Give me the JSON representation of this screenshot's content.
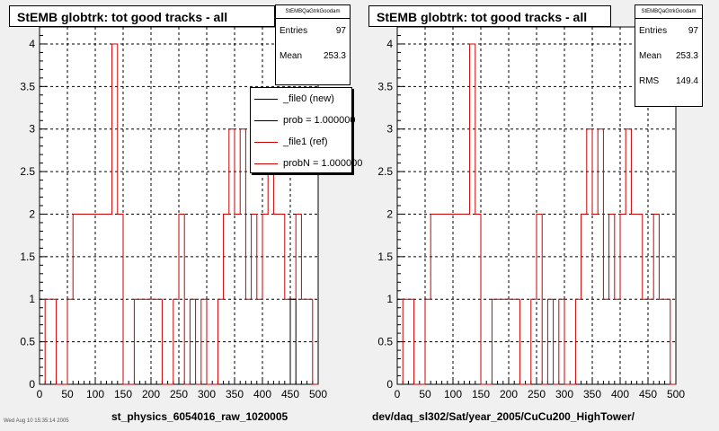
{
  "colors": {
    "new": "#000000",
    "ref": "#cc0000",
    "grid": "#000000"
  },
  "left": {
    "title": "StEMB globtrk: tot good tracks - all",
    "stats": {
      "header": "StEMBQaGtrkGoodam",
      "entries_label": "Entries",
      "entries": "97",
      "mean_label": "Mean",
      "mean": "253.3"
    },
    "legend": [
      "_file0 (new)",
      "prob = 1.000000",
      "_file1 (ref)",
      "probN = 1.000000"
    ],
    "xlabel": "st_physics_6054016_raw_1020005",
    "footer": "Wed Aug 10 15:35:14 2005"
  },
  "right": {
    "title": "StEMB globtrk: tot good tracks - all",
    "stats": {
      "header": "StEMBQaGtrkGoodam",
      "entries_label": "Entries",
      "entries": "97",
      "mean_label": "Mean",
      "mean": "253.3",
      "rms_label": "RMS",
      "rms": "149.4"
    },
    "xlabel": "dev/daq_sl302/Sat/year_2005/CuCu200_HighTower/"
  },
  "chart_data": [
    {
      "type": "histogram",
      "title": "StEMB globtrk: tot good tracks - all",
      "xlabel": "st_physics_6054016_raw_1020005",
      "xlim": [
        0,
        500
      ],
      "ylim": [
        0,
        4.2
      ],
      "xticks": [
        0,
        50,
        100,
        150,
        200,
        250,
        300,
        350,
        400,
        450,
        500
      ],
      "yticks": [
        "0",
        "0.5",
        "1",
        "1.5",
        "2",
        "2.5",
        "3",
        "3.5",
        "4"
      ],
      "grid": true,
      "bin_width": 10,
      "series": [
        {
          "name": "_file0 (new)",
          "color": "#000000",
          "bins": [
            [
              440,
              0
            ],
            [
              450,
              1
            ],
            [
              460,
              0
            ]
          ]
        },
        {
          "name": "_file1 (ref)",
          "color": "#cc0000",
          "bins": [
            [
              10,
              1
            ],
            [
              20,
              1
            ],
            [
              30,
              0
            ],
            [
              40,
              0
            ],
            [
              50,
              1
            ],
            [
              60,
              2
            ],
            [
              70,
              2
            ],
            [
              80,
              2
            ],
            [
              90,
              2
            ],
            [
              100,
              2
            ],
            [
              110,
              2
            ],
            [
              120,
              2
            ],
            [
              130,
              4
            ],
            [
              140,
              2
            ],
            [
              150,
              0
            ],
            [
              160,
              0
            ],
            [
              170,
              1
            ],
            [
              180,
              1
            ],
            [
              190,
              1
            ],
            [
              200,
              1
            ],
            [
              210,
              1
            ],
            [
              220,
              0
            ],
            [
              230,
              0
            ],
            [
              240,
              1
            ],
            [
              250,
              2
            ],
            [
              260,
              0
            ],
            [
              270,
              1
            ],
            [
              280,
              0
            ],
            [
              290,
              1
            ],
            [
              300,
              0
            ],
            [
              310,
              0
            ],
            [
              320,
              1
            ],
            [
              330,
              2
            ],
            [
              340,
              3
            ],
            [
              350,
              2
            ],
            [
              360,
              3
            ],
            [
              370,
              1
            ],
            [
              380,
              2
            ],
            [
              390,
              1
            ],
            [
              400,
              2
            ],
            [
              410,
              3
            ],
            [
              420,
              2
            ],
            [
              430,
              2
            ],
            [
              440,
              1
            ],
            [
              450,
              1
            ],
            [
              460,
              2
            ],
            [
              470,
              1
            ],
            [
              480,
              1
            ],
            [
              490,
              0
            ]
          ]
        }
      ]
    },
    {
      "type": "histogram",
      "title": "StEMB globtrk: tot good tracks - all",
      "xlabel": "dev/daq_sl302/Sat/year_2005/CuCu200_HighTower/",
      "xlim": [
        0,
        500
      ],
      "ylim": [
        0,
        4.2
      ],
      "xticks": [
        0,
        50,
        100,
        150,
        200,
        250,
        300,
        350,
        400,
        450,
        500
      ],
      "yticks": [
        "0",
        "0.5",
        "1",
        "1.5",
        "2",
        "2.5",
        "3",
        "3.5",
        "4"
      ],
      "grid": true,
      "bin_width": 10,
      "series": [
        {
          "name": "_file1 (ref)",
          "color": "#cc0000",
          "bins": [
            [
              10,
              1
            ],
            [
              20,
              1
            ],
            [
              30,
              0
            ],
            [
              40,
              0
            ],
            [
              50,
              1
            ],
            [
              60,
              2
            ],
            [
              70,
              2
            ],
            [
              80,
              2
            ],
            [
              90,
              2
            ],
            [
              100,
              2
            ],
            [
              110,
              2
            ],
            [
              120,
              2
            ],
            [
              130,
              4
            ],
            [
              140,
              2
            ],
            [
              150,
              0
            ],
            [
              160,
              0
            ],
            [
              170,
              1
            ],
            [
              180,
              1
            ],
            [
              190,
              1
            ],
            [
              200,
              1
            ],
            [
              210,
              1
            ],
            [
              220,
              0
            ],
            [
              230,
              0
            ],
            [
              240,
              1
            ],
            [
              250,
              2
            ],
            [
              260,
              0
            ],
            [
              270,
              1
            ],
            [
              280,
              0
            ],
            [
              290,
              1
            ],
            [
              300,
              0
            ],
            [
              310,
              0
            ],
            [
              320,
              1
            ],
            [
              330,
              2
            ],
            [
              340,
              3
            ],
            [
              350,
              2
            ],
            [
              360,
              3
            ],
            [
              370,
              1
            ],
            [
              380,
              2
            ],
            [
              390,
              1
            ],
            [
              400,
              2
            ],
            [
              410,
              3
            ],
            [
              420,
              2
            ],
            [
              430,
              2
            ],
            [
              440,
              1
            ],
            [
              450,
              1
            ],
            [
              460,
              2
            ],
            [
              470,
              1
            ],
            [
              480,
              1
            ],
            [
              490,
              0
            ]
          ]
        }
      ]
    }
  ]
}
